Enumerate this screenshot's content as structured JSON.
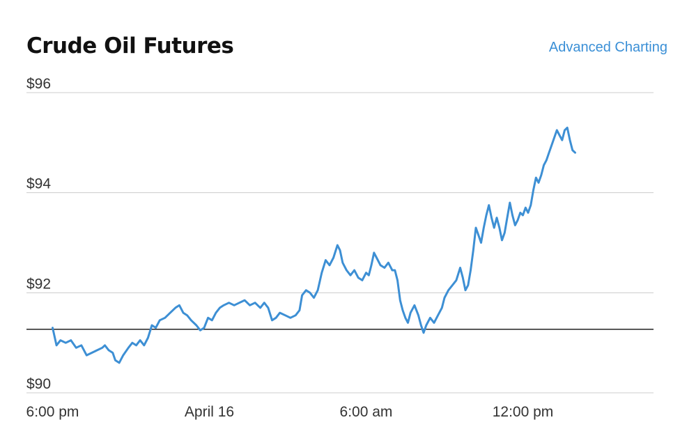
{
  "header": {
    "title": "Crude Oil Futures",
    "advanced_link": "Advanced Charting"
  },
  "colors": {
    "line": "#3d8fd4",
    "grid": "#cccccc",
    "reference_line": "#222222"
  },
  "chart_data": {
    "type": "line",
    "title": "Crude Oil Futures",
    "xlabel": "",
    "ylabel": "",
    "ylim": [
      90,
      96
    ],
    "y_ticks": [
      {
        "value": 90,
        "label": "$90"
      },
      {
        "value": 92,
        "label": "$92"
      },
      {
        "value": 94,
        "label": "$94"
      },
      {
        "value": 96,
        "label": "$96"
      }
    ],
    "x_ticks": [
      {
        "value": 0,
        "label": "6:00 pm"
      },
      {
        "value": 6,
        "label": "April 16"
      },
      {
        "value": 12,
        "label": "6:00 am"
      },
      {
        "value": 18,
        "label": "12:00 pm"
      }
    ],
    "xlim": [
      -1,
      23
    ],
    "reference_value": 91.27,
    "grid": true,
    "series": [
      {
        "values": [
          [
            0.0,
            91.3
          ],
          [
            0.15,
            90.95
          ],
          [
            0.3,
            91.05
          ],
          [
            0.5,
            91.0
          ],
          [
            0.7,
            91.05
          ],
          [
            0.9,
            90.9
          ],
          [
            1.1,
            90.95
          ],
          [
            1.3,
            90.75
          ],
          [
            1.5,
            90.8
          ],
          [
            1.7,
            90.85
          ],
          [
            1.9,
            90.9
          ],
          [
            2.0,
            90.95
          ],
          [
            2.15,
            90.85
          ],
          [
            2.3,
            90.8
          ],
          [
            2.4,
            90.65
          ],
          [
            2.55,
            90.6
          ],
          [
            2.7,
            90.75
          ],
          [
            2.9,
            90.9
          ],
          [
            3.05,
            91.0
          ],
          [
            3.2,
            90.95
          ],
          [
            3.35,
            91.05
          ],
          [
            3.5,
            90.95
          ],
          [
            3.65,
            91.1
          ],
          [
            3.8,
            91.35
          ],
          [
            3.95,
            91.3
          ],
          [
            4.1,
            91.45
          ],
          [
            4.3,
            91.5
          ],
          [
            4.5,
            91.6
          ],
          [
            4.7,
            91.7
          ],
          [
            4.85,
            91.75
          ],
          [
            5.0,
            91.6
          ],
          [
            5.15,
            91.55
          ],
          [
            5.3,
            91.45
          ],
          [
            5.5,
            91.35
          ],
          [
            5.65,
            91.25
          ],
          [
            5.8,
            91.3
          ],
          [
            5.95,
            91.5
          ],
          [
            6.1,
            91.45
          ],
          [
            6.25,
            91.6
          ],
          [
            6.4,
            91.7
          ],
          [
            6.55,
            91.75
          ],
          [
            6.75,
            91.8
          ],
          [
            6.95,
            91.75
          ],
          [
            7.15,
            91.8
          ],
          [
            7.35,
            91.85
          ],
          [
            7.55,
            91.75
          ],
          [
            7.75,
            91.8
          ],
          [
            7.95,
            91.7
          ],
          [
            8.1,
            91.8
          ],
          [
            8.25,
            91.7
          ],
          [
            8.4,
            91.45
          ],
          [
            8.55,
            91.5
          ],
          [
            8.7,
            91.6
          ],
          [
            8.9,
            91.55
          ],
          [
            9.1,
            91.5
          ],
          [
            9.3,
            91.55
          ],
          [
            9.45,
            91.65
          ],
          [
            9.55,
            91.95
          ],
          [
            9.7,
            92.05
          ],
          [
            9.85,
            92.0
          ],
          [
            10.0,
            91.9
          ],
          [
            10.15,
            92.05
          ],
          [
            10.3,
            92.4
          ],
          [
            10.45,
            92.65
          ],
          [
            10.6,
            92.55
          ],
          [
            10.75,
            92.7
          ],
          [
            10.9,
            92.95
          ],
          [
            11.0,
            92.85
          ],
          [
            11.1,
            92.6
          ],
          [
            11.25,
            92.45
          ],
          [
            11.4,
            92.35
          ],
          [
            11.55,
            92.45
          ],
          [
            11.7,
            92.3
          ],
          [
            11.85,
            92.25
          ],
          [
            12.0,
            92.4
          ],
          [
            12.1,
            92.35
          ],
          [
            12.2,
            92.55
          ],
          [
            12.3,
            92.8
          ],
          [
            12.4,
            92.7
          ],
          [
            12.55,
            92.55
          ],
          [
            12.7,
            92.5
          ],
          [
            12.85,
            92.6
          ],
          [
            13.0,
            92.45
          ],
          [
            13.1,
            92.45
          ],
          [
            13.2,
            92.25
          ],
          [
            13.3,
            91.85
          ],
          [
            13.4,
            91.65
          ],
          [
            13.5,
            91.5
          ],
          [
            13.6,
            91.4
          ],
          [
            13.7,
            91.6
          ],
          [
            13.85,
            91.75
          ],
          [
            14.0,
            91.55
          ],
          [
            14.1,
            91.35
          ],
          [
            14.2,
            91.2
          ],
          [
            14.3,
            91.35
          ],
          [
            14.45,
            91.5
          ],
          [
            14.6,
            91.4
          ],
          [
            14.75,
            91.55
          ],
          [
            14.9,
            91.7
          ],
          [
            15.0,
            91.9
          ],
          [
            15.15,
            92.05
          ],
          [
            15.3,
            92.15
          ],
          [
            15.45,
            92.25
          ],
          [
            15.6,
            92.5
          ],
          [
            15.7,
            92.3
          ],
          [
            15.8,
            92.05
          ],
          [
            15.9,
            92.15
          ],
          [
            16.0,
            92.45
          ],
          [
            16.1,
            92.85
          ],
          [
            16.2,
            93.3
          ],
          [
            16.3,
            93.15
          ],
          [
            16.4,
            93.0
          ],
          [
            16.5,
            93.3
          ],
          [
            16.6,
            93.55
          ],
          [
            16.7,
            93.75
          ],
          [
            16.8,
            93.5
          ],
          [
            16.9,
            93.3
          ],
          [
            17.0,
            93.5
          ],
          [
            17.1,
            93.3
          ],
          [
            17.2,
            93.05
          ],
          [
            17.3,
            93.2
          ],
          [
            17.4,
            93.5
          ],
          [
            17.5,
            93.8
          ],
          [
            17.6,
            93.55
          ],
          [
            17.7,
            93.35
          ],
          [
            17.8,
            93.45
          ],
          [
            17.9,
            93.6
          ],
          [
            18.0,
            93.55
          ],
          [
            18.1,
            93.7
          ],
          [
            18.2,
            93.6
          ],
          [
            18.3,
            93.75
          ],
          [
            18.4,
            94.05
          ],
          [
            18.5,
            94.3
          ],
          [
            18.6,
            94.2
          ],
          [
            18.7,
            94.35
          ],
          [
            18.8,
            94.55
          ],
          [
            18.9,
            94.65
          ],
          [
            19.0,
            94.8
          ],
          [
            19.1,
            94.95
          ],
          [
            19.2,
            95.1
          ],
          [
            19.3,
            95.25
          ],
          [
            19.4,
            95.15
          ],
          [
            19.5,
            95.05
          ],
          [
            19.6,
            95.25
          ],
          [
            19.7,
            95.3
          ],
          [
            19.8,
            95.05
          ],
          [
            19.9,
            94.85
          ],
          [
            20.0,
            94.8
          ]
        ]
      }
    ]
  }
}
